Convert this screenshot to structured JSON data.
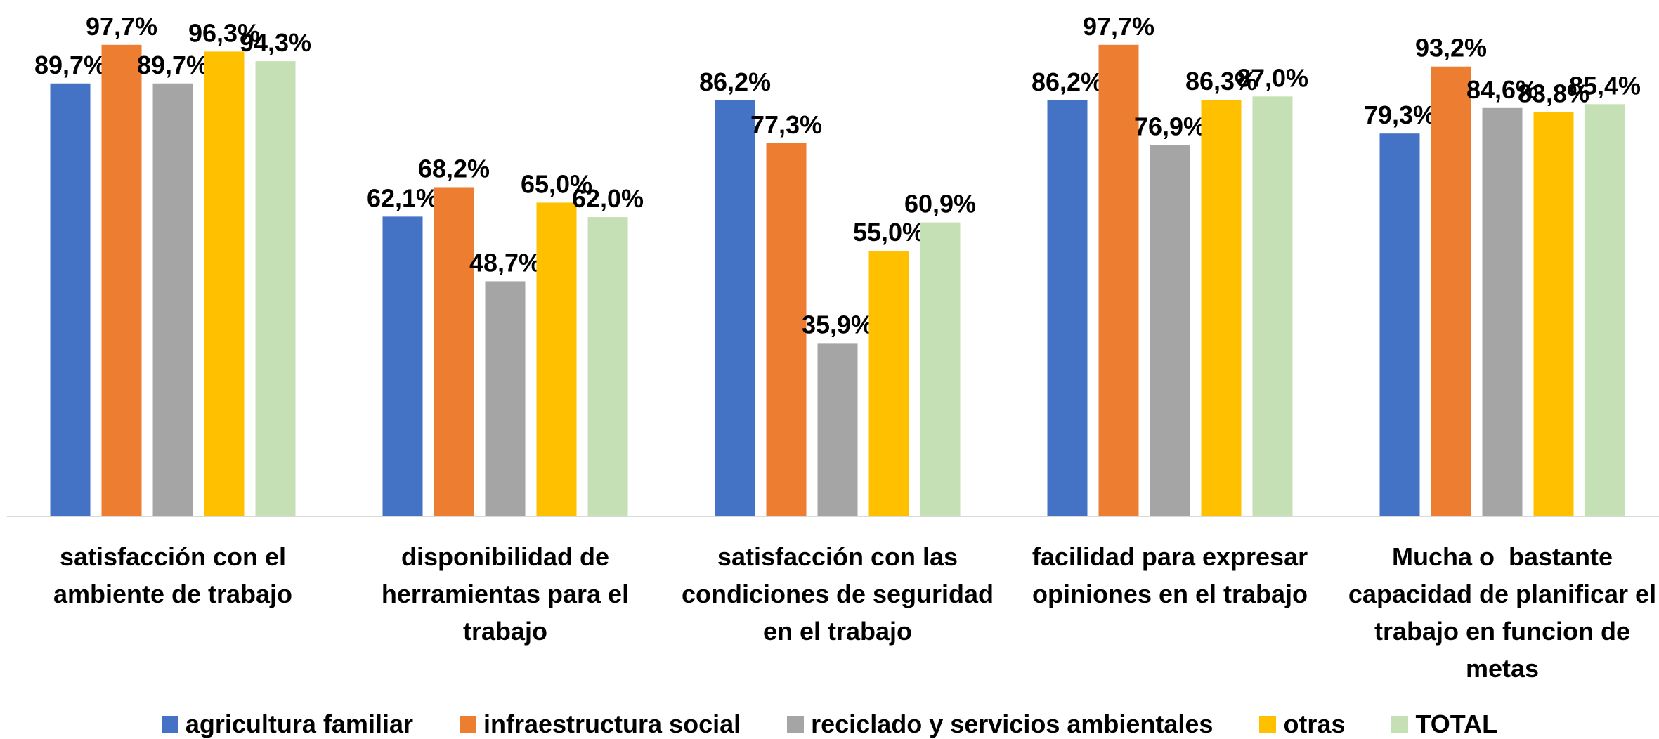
{
  "chart_data": {
    "type": "bar",
    "categories": [
      "satisfacción con el ambiente de trabajo",
      "disponibilidad de herramientas para el trabajo",
      "satisfacción con las condiciones de seguridad en el trabajo",
      "facilidad para expresar opiniones en el trabajo",
      "Mucha o  bastante capacidad de planificar el trabajo en funcion de metas"
    ],
    "series": [
      {
        "name": "agricultura familiar",
        "color": "#4472c4",
        "values": [
          89.7,
          62.1,
          86.2,
          86.2,
          79.3
        ],
        "value_labels": [
          "89,7%",
          "62,1%",
          "86,2%",
          "86,2%",
          "79,3%"
        ]
      },
      {
        "name": "infraestructura social",
        "color": "#ed7d31",
        "values": [
          97.7,
          68.2,
          77.3,
          97.7,
          93.2
        ],
        "value_labels": [
          "97,7%",
          "68,2%",
          "77,3%",
          "97,7%",
          "93,2%"
        ]
      },
      {
        "name": "reciclado y servicios ambientales",
        "color": "#a5a5a5",
        "values": [
          89.7,
          48.7,
          35.9,
          76.9,
          84.6
        ],
        "value_labels": [
          "89,7%",
          "48,7%",
          "35,9%",
          "76,9%",
          "84,6%"
        ]
      },
      {
        "name": "otras",
        "color": "#ffc000",
        "values": [
          96.3,
          65.0,
          55.0,
          86.3,
          83.8
        ],
        "value_labels": [
          "96,3%",
          "65,0%",
          "55,0%",
          "86,3%",
          "83,8%"
        ]
      },
      {
        "name": "TOTAL",
        "color": "#c5e0b4",
        "values": [
          94.3,
          62.0,
          60.9,
          87.0,
          85.4
        ],
        "value_labels": [
          "94,3%",
          "62,0%",
          "60,9%",
          "87,0%",
          "85,4%"
        ]
      }
    ],
    "ylim": [
      0,
      100
    ],
    "legend": "bottom"
  }
}
